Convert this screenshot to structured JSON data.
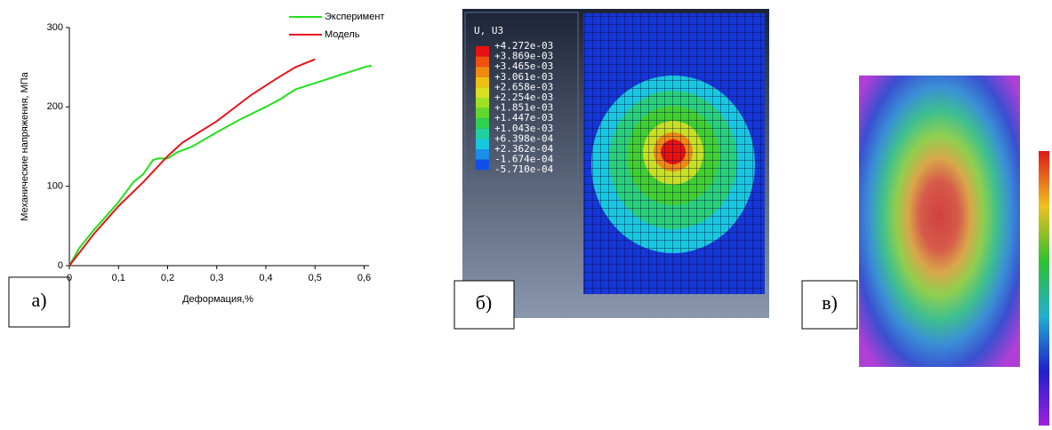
{
  "chart_data": {
    "type": "line",
    "x_label": "Деформация,%",
    "y_label": "Механические напряжения, МПа",
    "xlim": [
      0,
      0.61
    ],
    "ylim": [
      0,
      300
    ],
    "xticks": [
      0,
      {
        "value": 0.1,
        "label": "0,1"
      },
      {
        "value": 0.2,
        "label": "0,2"
      },
      {
        "value": 0.3,
        "label": "0,3"
      },
      {
        "value": 0.4,
        "label": "0,4"
      },
      {
        "value": 0.5,
        "label": "0,5"
      },
      {
        "value": 0.6,
        "label": "0,6"
      }
    ],
    "yticks": [
      0,
      100,
      200,
      300
    ],
    "legend": "upper right",
    "series": [
      {
        "name": "Эксперимент",
        "color": "#22e01c",
        "x": [
          0,
          0.02,
          0.05,
          0.1,
          0.13,
          0.15,
          0.17,
          0.18,
          0.2,
          0.22,
          0.25,
          0.3,
          0.35,
          0.4,
          0.43,
          0.46,
          0.5,
          0.55,
          0.6,
          0.615
        ],
        "values": [
          0,
          22,
          45,
          80,
          105,
          115,
          133,
          135,
          135,
          143,
          150,
          168,
          185,
          200,
          210,
          222,
          230,
          240,
          250,
          252
        ]
      },
      {
        "name": "Модель",
        "color": "#e8141c",
        "x": [
          0,
          0.05,
          0.1,
          0.15,
          0.2,
          0.23,
          0.3,
          0.37,
          0.42,
          0.46,
          0.5
        ],
        "values": [
          0,
          40,
          75,
          105,
          138,
          155,
          182,
          215,
          235,
          250,
          260
        ]
      }
    ]
  },
  "panel_labels": [
    "а)",
    "б)",
    "в)"
  ],
  "fem_legend": {
    "title": "U, U3",
    "levels": [
      "+4.272e-03",
      "+3.869e-03",
      "+3.465e-03",
      "+3.061e-03",
      "+2.658e-03",
      "+2.254e-03",
      "+1.851e-03",
      "+1.447e-03",
      "+1.043e-03",
      "+6.398e-04",
      "+2.362e-04",
      "-1.674e-04",
      "-5.710e-04"
    ]
  }
}
